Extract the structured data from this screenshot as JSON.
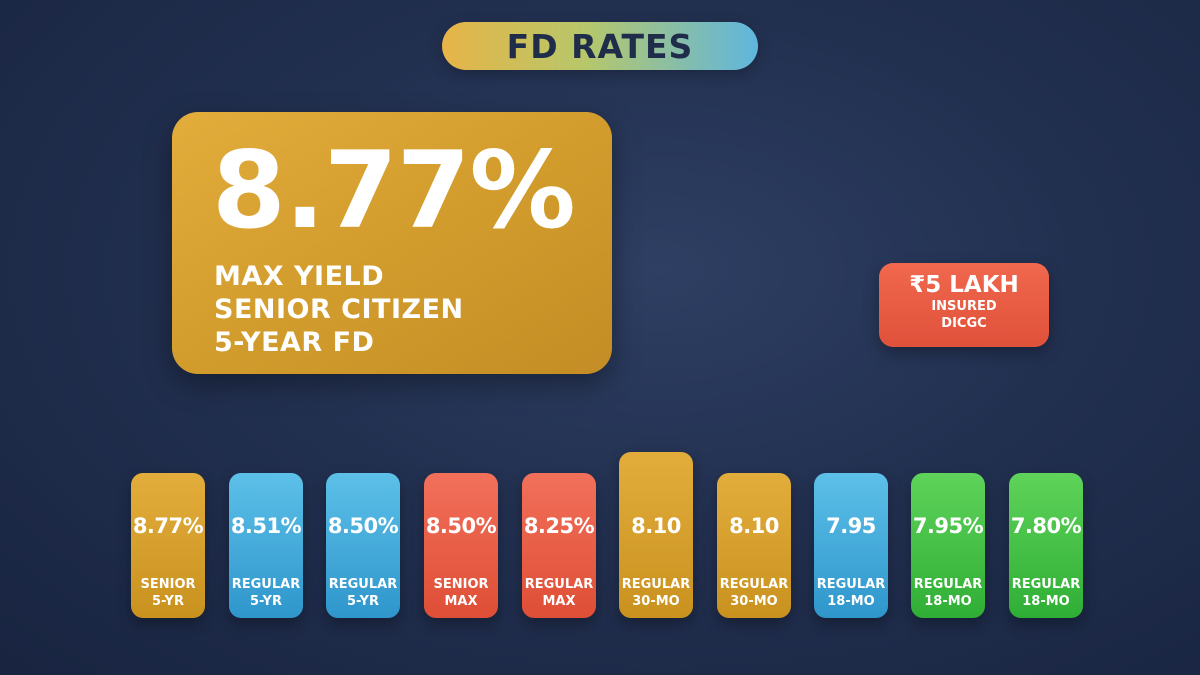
{
  "title": "FD RATES",
  "hero": {
    "value": "8.77%",
    "lines": [
      "MAX YIELD",
      "SENIOR CITIZEN",
      "5-YEAR FD"
    ]
  },
  "insured": {
    "amount": "₹5 LAKH",
    "line1": "INSURED",
    "line2": "DICGC"
  },
  "colors": {
    "gold": "#d9a334",
    "blue": "#45acdc",
    "red": "#e85d45",
    "green": "#46c248",
    "navy": "#1f2d4a"
  },
  "rates": [
    {
      "value": "8.77%",
      "line1": "SENIOR",
      "line2": "5-YR",
      "color": "gold"
    },
    {
      "value": "8.51%",
      "line1": "REGULAR",
      "line2": "5-YR",
      "color": "blue"
    },
    {
      "value": "8.50%",
      "line1": "REGULAR",
      "line2": "5-YR",
      "color": "blue"
    },
    {
      "value": "8.50%",
      "line1": "SENIOR",
      "line2": "MAX",
      "color": "red"
    },
    {
      "value": "8.25%",
      "line1": "REGULAR",
      "line2": "MAX",
      "color": "red"
    },
    {
      "value": "8.10",
      "line1": "REGULAR",
      "line2": "30-MO",
      "color": "gold"
    },
    {
      "value": "8.10",
      "line1": "REGULAR",
      "line2": "30-MO",
      "color": "gold"
    },
    {
      "value": "7.95",
      "line1": "REGULAR",
      "line2": "18-MO",
      "color": "blue"
    },
    {
      "value": "7.95%",
      "line1": "REGULAR",
      "line2": "18-MO",
      "color": "green"
    },
    {
      "value": "7.80%",
      "line1": "REGULAR",
      "line2": "18-MO",
      "color": "green"
    }
  ]
}
